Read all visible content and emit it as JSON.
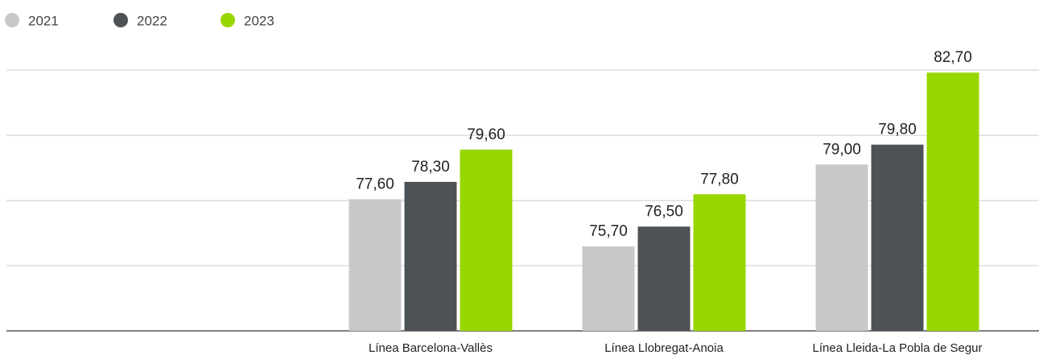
{
  "chart_data": {
    "type": "bar",
    "categories": [
      "Línea Barcelona-Vallès",
      "Línea Llobregat-Anoia",
      "Línea Lleida-La Pobla de Segur"
    ],
    "series": [
      {
        "name": "2021",
        "color": "#c8c8ca",
        "values": [
          77.6,
          75.7,
          79.0
        ],
        "value_labels": [
          "77,60",
          "75,70",
          "79,00"
        ]
      },
      {
        "name": "2022",
        "color": "#4d5256",
        "values": [
          78.3,
          76.5,
          79.8
        ],
        "value_labels": [
          "78,30",
          "76,50",
          "79,80"
        ]
      },
      {
        "name": "2023",
        "color": "#97d700",
        "values": [
          79.6,
          77.8,
          82.7
        ],
        "value_labels": [
          "79,60",
          "77,80",
          "82,70"
        ]
      }
    ],
    "ylim": [
      72.3,
      83.55
    ],
    "yticks": [
      72.3,
      74.925,
      77.55,
      80.175,
      82.8
    ],
    "grid": true
  }
}
